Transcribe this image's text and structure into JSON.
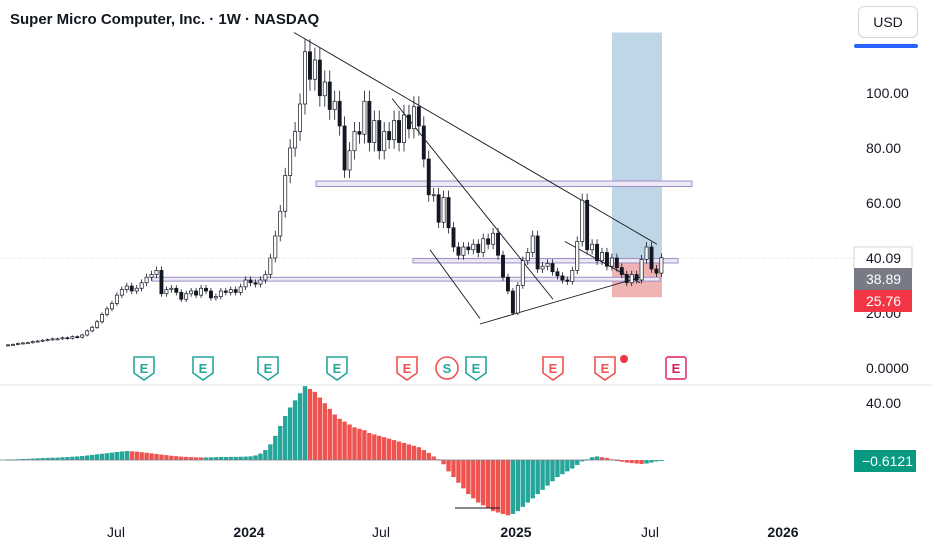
{
  "header": {
    "title": "Super Micro Computer, Inc. · 1W · NASDAQ",
    "currency": "USD"
  },
  "colors": {
    "up": "#26a69a",
    "down": "#ef5350",
    "hist_up": "#26a69a",
    "hist_down": "#ef5350",
    "target_zone": "#bcd4e6",
    "stop_zone": "#f0b3b3",
    "zone_line": "#9c8fc4",
    "earnings": "#26a69a",
    "earnings_alt": "#ef5350",
    "earnings_future": "#d81b60",
    "split": "#ef5350"
  },
  "chart_data": {
    "type": "candlestick",
    "price_axis": {
      "ticks": [
        0,
        20,
        40,
        60,
        80,
        100
      ],
      "tick_labels": [
        "0.0000",
        "20.00",
        "40.00",
        "60.00",
        "80.00",
        "100.00"
      ]
    },
    "time_axis": {
      "labels": [
        "Jul",
        "2024",
        "Jul",
        "2025",
        "Jul",
        "2026"
      ],
      "bold": [
        false,
        true,
        false,
        true,
        false,
        true
      ]
    },
    "price_labels": [
      {
        "value": 40.09,
        "label": "40.09",
        "style": "outline"
      },
      {
        "value": 38.89,
        "label": "38.89",
        "style": "gray"
      },
      {
        "value": 25.76,
        "label": "25.76",
        "style": "red"
      }
    ],
    "series": [
      {
        "c": 8.4
      },
      {
        "c": 8.6
      },
      {
        "c": 8.9
      },
      {
        "c": 9.1
      },
      {
        "c": 9.2
      },
      {
        "c": 9.6
      },
      {
        "c": 9.8
      },
      {
        "c": 10.1
      },
      {
        "c": 10.3
      },
      {
        "c": 10.6
      },
      {
        "c": 10.6
      },
      {
        "c": 11.0
      },
      {
        "c": 10.8
      },
      {
        "c": 11.4
      },
      {
        "c": 11.2
      },
      {
        "c": 12.0
      },
      {
        "c": 13.5
      },
      {
        "c": 14.8
      },
      {
        "c": 16.8
      },
      {
        "c": 19.5
      },
      {
        "c": 21.5
      },
      {
        "c": 23.5
      },
      {
        "c": 26.5
      },
      {
        "c": 28.5
      },
      {
        "c": 29.8
      },
      {
        "c": 28.0
      },
      {
        "c": 29.0
      },
      {
        "c": 31.0
      },
      {
        "c": 33.0
      },
      {
        "c": 34.0
      },
      {
        "c": 35.5
      },
      {
        "c": 27.0
      },
      {
        "c": 28.5
      },
      {
        "c": 29.0
      },
      {
        "c": 27.5
      },
      {
        "c": 25.0
      },
      {
        "c": 27.0
      },
      {
        "c": 28.0
      },
      {
        "c": 26.5
      },
      {
        "c": 29.0
      },
      {
        "c": 28.0
      },
      {
        "c": 25.5
      },
      {
        "c": 26.0
      },
      {
        "c": 28.0
      },
      {
        "c": 27.5
      },
      {
        "c": 28.5
      },
      {
        "c": 27.5
      },
      {
        "c": 29.5
      },
      {
        "c": 32.0
      },
      {
        "c": 31.0
      },
      {
        "c": 30.5
      },
      {
        "c": 32.0
      },
      {
        "c": 34.0
      },
      {
        "c": 40.0
      },
      {
        "c": 48.0
      },
      {
        "c": 57.0
      },
      {
        "c": 70.0
      },
      {
        "c": 80.0
      },
      {
        "c": 86.0
      },
      {
        "c": 96.0
      },
      {
        "c": 115.0
      },
      {
        "c": 105.0
      },
      {
        "c": 112.0
      },
      {
        "c": 99.0
      },
      {
        "c": 104.0
      },
      {
        "c": 94.0
      },
      {
        "c": 97.0
      },
      {
        "c": 88.0
      },
      {
        "c": 72.0
      },
      {
        "c": 79.0
      },
      {
        "c": 86.0
      },
      {
        "c": 85.0
      },
      {
        "c": 97.0
      },
      {
        "c": 82.0
      },
      {
        "c": 90.0
      },
      {
        "c": 79.0
      },
      {
        "c": 86.0
      },
      {
        "c": 83.0
      },
      {
        "c": 90.0
      },
      {
        "c": 82.0
      },
      {
        "c": 92.0
      },
      {
        "c": 87.0
      },
      {
        "c": 95.0
      },
      {
        "c": 88.0
      },
      {
        "c": 76.0
      },
      {
        "c": 63.0
      },
      {
        "c": 63.0
      },
      {
        "c": 53.0
      },
      {
        "c": 62.0
      },
      {
        "c": 51.0
      },
      {
        "c": 44.0
      },
      {
        "c": 41.0
      },
      {
        "c": 44.0
      },
      {
        "c": 43.0
      },
      {
        "c": 45.0
      },
      {
        "c": 42.0
      },
      {
        "c": 47.0
      },
      {
        "c": 45.0
      },
      {
        "c": 49.0
      },
      {
        "c": 41.0
      },
      {
        "c": 33.0
      },
      {
        "c": 28.0
      },
      {
        "c": 20.0
      },
      {
        "c": 30.0
      },
      {
        "c": 39.0
      },
      {
        "c": 42.0
      },
      {
        "c": 48.0
      },
      {
        "c": 36.0
      },
      {
        "c": 37.0
      },
      {
        "c": 38.0
      },
      {
        "c": 35.0
      },
      {
        "c": 33.5
      },
      {
        "c": 32.0
      },
      {
        "c": 31.5
      },
      {
        "c": 35.5
      },
      {
        "c": 46.0
      },
      {
        "c": 61.0
      },
      {
        "c": 43.0
      },
      {
        "c": 45.0
      },
      {
        "c": 39.0
      },
      {
        "c": 42.0
      },
      {
        "c": 37.0
      },
      {
        "c": 40.0
      },
      {
        "c": 36.5
      },
      {
        "c": 34.0
      },
      {
        "c": 31.0
      },
      {
        "c": 34.0
      },
      {
        "c": 32.0
      },
      {
        "c": 39.5
      },
      {
        "c": 44.0
      },
      {
        "c": 36.0
      },
      {
        "c": 34.5
      },
      {
        "c": 40.09
      }
    ],
    "oscillator": {
      "value_label": "−0.6121",
      "ticks": [
        40
      ],
      "tick_labels": [
        "40.00"
      ],
      "values": [
        0.3,
        0.4,
        0.5,
        0.7,
        0.8,
        1.0,
        1.2,
        1.4,
        1.5,
        1.6,
        1.7,
        1.9,
        2.1,
        2.3,
        2.5,
        2.8,
        3.2,
        3.6,
        4.0,
        4.4,
        4.8,
        5.2,
        5.6,
        6.0,
        6.3,
        6.1,
        5.9,
        5.5,
        5.1,
        4.7,
        4.3,
        3.8,
        3.4,
        3.0,
        2.7,
        2.4,
        2.2,
        2.0,
        1.9,
        1.8,
        1.8,
        1.9,
        2.0,
        2.1,
        2.1,
        2.2,
        2.2,
        2.3,
        2.4,
        2.6,
        3.2,
        4.5,
        7.0,
        11.0,
        17.0,
        24.0,
        31.0,
        37.0,
        42.0,
        47.0,
        52.0,
        50.0,
        48.0,
        44.0,
        40.0,
        36.0,
        32.0,
        29.0,
        27.0,
        25.0,
        23.0,
        22.0,
        21.0,
        19.0,
        18.0,
        17.0,
        16.0,
        15.0,
        14.0,
        13.0,
        12.0,
        11.0,
        10.0,
        9.0,
        7.0,
        5.0,
        2.5,
        0.5,
        -3.0,
        -8.0,
        -12.0,
        -16.0,
        -20.0,
        -24.0,
        -27.0,
        -30.0,
        -32.0,
        -34.0,
        -36.0,
        -37.0,
        -38.0,
        -39.0,
        -38.0,
        -36.0,
        -33.0,
        -30.0,
        -27.0,
        -24.0,
        -21.0,
        -18.0,
        -15.0,
        -12.0,
        -10.0,
        -8.0,
        -6.0,
        -3.5,
        -1.0,
        0.5,
        2.0,
        2.5,
        2.0,
        1.5,
        0.5,
        -0.5,
        -1.2,
        -1.8,
        -2.2,
        -2.5,
        -2.8,
        -2.5,
        -1.8,
        -1.0,
        -0.6121
      ]
    },
    "markers": [
      {
        "label": "E",
        "kind": "earnings"
      },
      {
        "label": "E",
        "kind": "earnings"
      },
      {
        "label": "E",
        "kind": "earnings"
      },
      {
        "label": "E",
        "kind": "earnings"
      },
      {
        "label": "E",
        "kind": "earnings-miss"
      },
      {
        "label": "S",
        "kind": "split"
      },
      {
        "label": "E",
        "kind": "earnings"
      },
      {
        "label": "E",
        "kind": "earnings-miss"
      },
      {
        "label": "E",
        "kind": "earnings-miss"
      },
      {
        "label": "E",
        "kind": "earnings-future"
      }
    ],
    "zones": {
      "resistance": [
        66,
        68
      ],
      "support_mid": [
        38.2,
        39.8
      ],
      "support_low": [
        31.6,
        33.0
      ],
      "target_box": [
        38.9,
        122
      ],
      "stop_box": [
        25.76,
        38.9
      ]
    }
  }
}
